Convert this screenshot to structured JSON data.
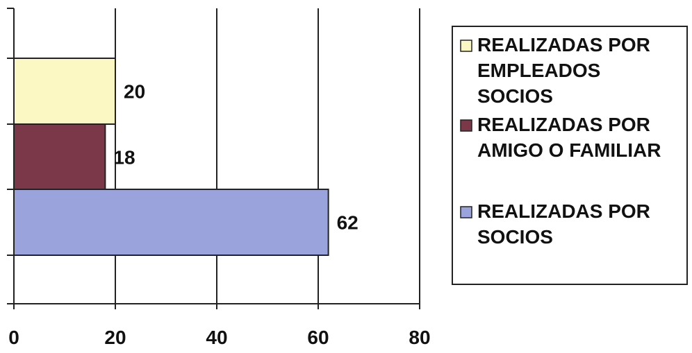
{
  "chart_data": {
    "type": "bar",
    "orientation": "horizontal",
    "categories": [
      "REALIZADAS POR EMPLEADOS SOCIOS",
      "REALIZADAS POR AMIGO O FAMILIAR",
      "REALIZADAS POR SOCIOS"
    ],
    "values": [
      20,
      18,
      62
    ],
    "data_labels": [
      "20",
      "18",
      "62"
    ],
    "colors": [
      "#fcf8c4",
      "#7b3848",
      "#9aa3dc"
    ],
    "xlim": [
      0,
      80
    ],
    "x_ticks": [
      0,
      20,
      40,
      60,
      80
    ],
    "x_tick_labels": [
      "0",
      "20",
      "40",
      "60",
      "80"
    ],
    "grid": "vertical",
    "legend_position": "right",
    "legend": [
      {
        "lines": [
          "REALIZADAS POR",
          "EMPLEADOS",
          "SOCIOS"
        ],
        "color": "#fcf8c4"
      },
      {
        "lines": [
          "REALIZADAS POR",
          "AMIGO O FAMILIAR"
        ],
        "color": "#7b3848"
      },
      {
        "lines": [
          "REALIZADAS POR",
          "SOCIOS"
        ],
        "color": "#9aa3dc"
      }
    ],
    "title": "",
    "xlabel": "",
    "ylabel": ""
  }
}
